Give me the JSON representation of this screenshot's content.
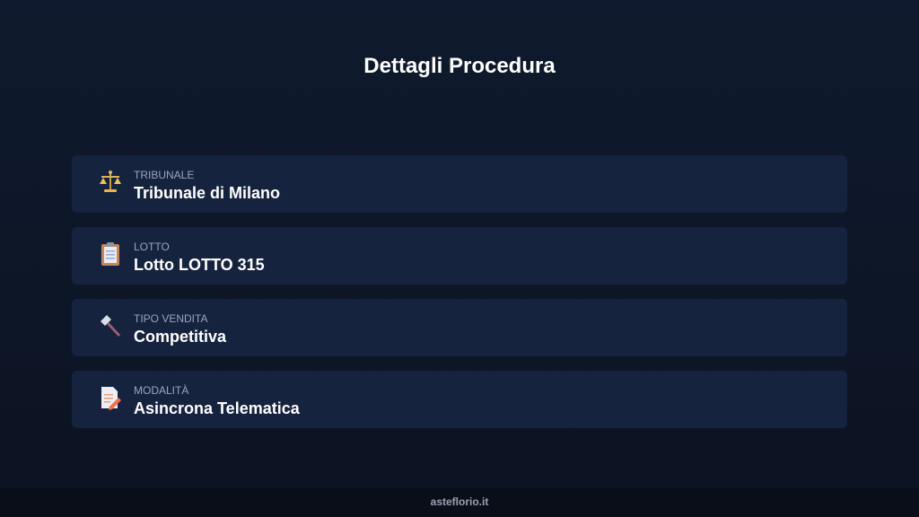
{
  "header": {
    "title": "Dettagli Procedura"
  },
  "items": [
    {
      "icon": "balance-scale-icon",
      "label": "TRIBUNALE",
      "value": "Tribunale di Milano"
    },
    {
      "icon": "clipboard-icon",
      "label": "LOTTO",
      "value": "Lotto LOTTO 315"
    },
    {
      "icon": "hammer-icon",
      "label": "TIPO VENDITA",
      "value": "Competitiva"
    },
    {
      "icon": "memo-icon",
      "label": "MODALITÀ",
      "value": "Asincrona Telematica"
    }
  ],
  "footer": {
    "text": "asteflorio.it"
  }
}
